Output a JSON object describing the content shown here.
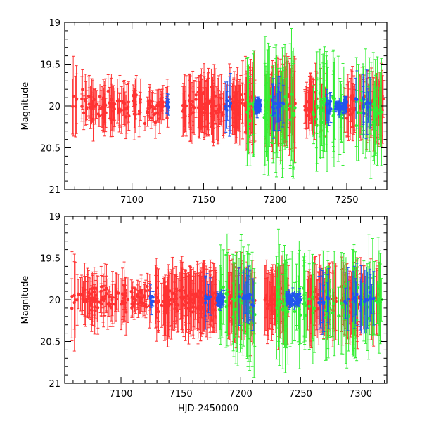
{
  "chart_data": [
    {
      "type": "scatter",
      "panel": "top",
      "ylabel": "Magnitude",
      "xlabel": "",
      "xlim": [
        7053,
        7278
      ],
      "ylim": [
        21,
        19
      ],
      "y_inverted": true,
      "xticks": [
        7100,
        7150,
        7200,
        7250
      ],
      "yticks": [
        19,
        19.5,
        20,
        20.5,
        21
      ],
      "ytick_labels": [
        "19",
        "19.5",
        "20",
        "20.5",
        "21"
      ],
      "grid": false,
      "error_bars": true,
      "series": [
        {
          "name": "red",
          "color": "#ff3333",
          "segments": [
            [
              7058,
              7062,
              5,
              0.4
            ],
            [
              7063,
              7098,
              70,
              0.22
            ],
            [
              7100,
              7106,
              14,
              0.22
            ],
            [
              7108,
              7122,
              30,
              0.14
            ],
            [
              7123,
              7125,
              4,
              0.2
            ],
            [
              7135,
              7138,
              8,
              0.26
            ],
            [
              7139,
              7176,
              110,
              0.28
            ],
            [
              7177,
              7186,
              35,
              0.38
            ],
            [
              7193,
              7214,
              60,
              0.38
            ],
            [
              7220,
              7236,
              45,
              0.24
            ],
            [
              7248,
              7256,
              22,
              0.26
            ],
            [
              7258,
              7276,
              50,
              0.3
            ]
          ],
          "mean": 20.0,
          "scatter": 0.22,
          "seed": 11
        },
        {
          "name": "green",
          "color": "#33ee33",
          "segments": [
            [
              7180,
              7186,
              10,
              0.45
            ],
            [
              7192,
              7214,
              40,
              0.55
            ],
            [
              7226,
              7238,
              20,
              0.5
            ],
            [
              7240,
              7250,
              14,
              0.45
            ],
            [
              7256,
              7276,
              30,
              0.45
            ]
          ],
          "mean": 20.05,
          "scatter": 0.28,
          "seed": 23
        },
        {
          "name": "blue",
          "color": "#2255ee",
          "segments": [
            [
              7124,
              7126,
              5,
              0.1
            ],
            [
              7165,
              7170,
              6,
              0.25
            ],
            [
              7186,
              7190,
              25,
              0.05
            ],
            [
              7196,
              7206,
              14,
              0.25
            ],
            [
              7236,
              7239,
              8,
              0.15
            ],
            [
              7242,
              7250,
              35,
              0.05
            ],
            [
              7256,
              7268,
              12,
              0.3
            ]
          ],
          "mean": 20.0,
          "scatter": 0.12,
          "seed": 37
        }
      ]
    },
    {
      "type": "scatter",
      "panel": "bottom",
      "ylabel": "Magnitude",
      "xlabel": "HJD-2450000",
      "xlim": [
        7053,
        7322
      ],
      "ylim": [
        21,
        19
      ],
      "y_inverted": true,
      "xticks": [
        7100,
        7150,
        7200,
        7250,
        7300
      ],
      "yticks": [
        19,
        19.5,
        20,
        20.5,
        21
      ],
      "ytick_labels": [
        "19",
        "19.5",
        "20",
        "20.5",
        "21"
      ],
      "grid": false,
      "error_bars": true,
      "series": [
        {
          "name": "red",
          "color": "#ff3333",
          "segments": [
            [
              7058,
              7062,
              5,
              0.4
            ],
            [
              7063,
              7098,
              70,
              0.22
            ],
            [
              7100,
              7106,
              14,
              0.22
            ],
            [
              7108,
              7122,
              30,
              0.14
            ],
            [
              7123,
              7125,
              4,
              0.2
            ],
            [
              7128,
              7138,
              20,
              0.28
            ],
            [
              7139,
              7180,
              120,
              0.3
            ],
            [
              7188,
              7212,
              60,
              0.36
            ],
            [
              7220,
              7240,
              50,
              0.3
            ],
            [
              7255,
              7280,
              55,
              0.32
            ],
            [
              7284,
              7316,
              60,
              0.34
            ]
          ],
          "mean": 20.0,
          "scatter": 0.22,
          "seed": 51
        },
        {
          "name": "green",
          "color": "#33ee33",
          "segments": [
            [
              7182,
              7190,
              12,
              0.5
            ],
            [
              7193,
              7212,
              35,
              0.5
            ],
            [
              7230,
              7250,
              30,
              0.5
            ],
            [
              7252,
              7262,
              14,
              0.45
            ],
            [
              7268,
              7318,
              55,
              0.45
            ]
          ],
          "mean": 20.05,
          "scatter": 0.28,
          "seed": 67
        },
        {
          "name": "blue",
          "color": "#2255ee",
          "segments": [
            [
              7124,
              7128,
              6,
              0.1
            ],
            [
              7170,
              7176,
              6,
              0.25
            ],
            [
              7180,
              7186,
              22,
              0.06
            ],
            [
              7198,
              7212,
              14,
              0.25
            ],
            [
              7238,
              7250,
              40,
              0.05
            ],
            [
              7262,
              7274,
              10,
              0.28
            ],
            [
              7286,
              7312,
              20,
              0.28
            ]
          ],
          "mean": 20.0,
          "scatter": 0.12,
          "seed": 79
        }
      ]
    }
  ]
}
